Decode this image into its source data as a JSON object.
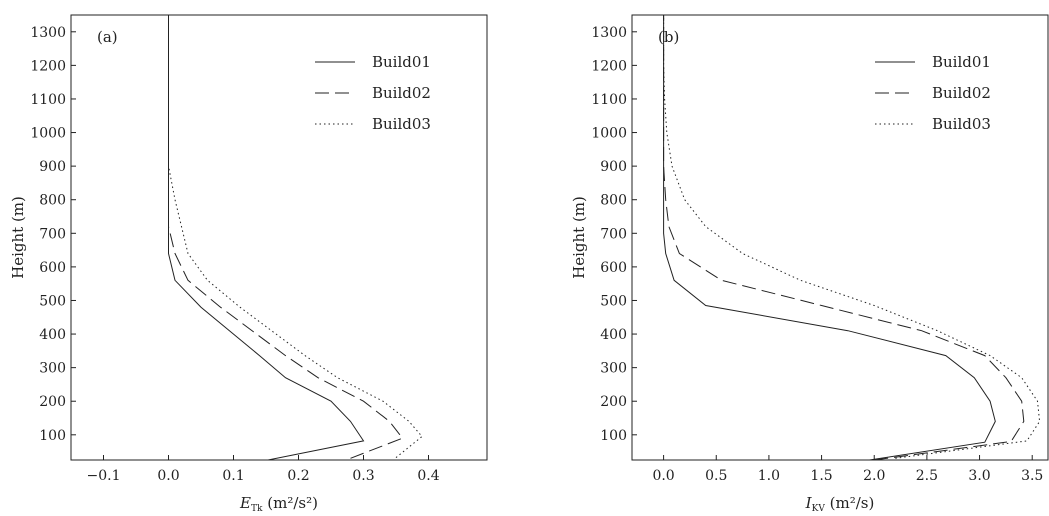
{
  "chart_data": [
    {
      "type": "line",
      "panel_label": "(a)",
      "xlabel_main": "E",
      "xlabel_sub": "Tk",
      "xlabel_unit": "(m²/s²)",
      "ylabel": "Height (m)",
      "xlim": [
        -0.15,
        0.49
      ],
      "ylim": [
        25,
        1350
      ],
      "xticks": [
        -0.1,
        0.0,
        0.1,
        0.2,
        0.3,
        0.4
      ],
      "xtick_labels": [
        "−0.1",
        "0.0",
        "0.1",
        "0.2",
        "0.3",
        "0.4"
      ],
      "yticks": [
        100,
        200,
        300,
        400,
        500,
        600,
        700,
        800,
        900,
        1000,
        1100,
        1200,
        1300
      ],
      "legend_position": "top-right",
      "series": [
        {
          "name": "Build01",
          "style": "solid",
          "points": [
            [
              0.14,
              20
            ],
            [
              0.3,
              82
            ],
            [
              0.28,
              140
            ],
            [
              0.25,
              200
            ],
            [
              0.18,
              270
            ],
            [
              0.14,
              336
            ],
            [
              0.05,
              480
            ],
            [
              0.01,
              560
            ],
            [
              0.0,
              640
            ],
            [
              0.0,
              700
            ],
            [
              0.0,
              800
            ],
            [
              0.0,
              900
            ],
            [
              0.0,
              1000
            ],
            [
              0.0,
              1100
            ],
            [
              0.0,
              1200
            ],
            [
              0.0,
              1350
            ]
          ]
        },
        {
          "name": "Build02",
          "style": "dashed",
          "points": [
            [
              0.28,
              30
            ],
            [
              0.36,
              90
            ],
            [
              0.34,
              140
            ],
            [
              0.3,
              200
            ],
            [
              0.23,
              270
            ],
            [
              0.18,
              336
            ],
            [
              0.08,
              480
            ],
            [
              0.03,
              560
            ],
            [
              0.01,
              640
            ],
            [
              0.0,
              720
            ],
            [
              0.0,
              800
            ],
            [
              0.0,
              900
            ],
            [
              0.0,
              1000
            ],
            [
              0.0,
              1100
            ],
            [
              0.0,
              1200
            ],
            [
              0.0,
              1350
            ]
          ]
        },
        {
          "name": "Build03",
          "style": "dotted",
          "points": [
            [
              0.35,
              32
            ],
            [
              0.39,
              95
            ],
            [
              0.37,
              140
            ],
            [
              0.33,
              200
            ],
            [
              0.26,
              270
            ],
            [
              0.21,
              336
            ],
            [
              0.11,
              480
            ],
            [
              0.06,
              560
            ],
            [
              0.03,
              640
            ],
            [
              0.02,
              720
            ],
            [
              0.01,
              800
            ],
            [
              0.0,
              900
            ],
            [
              0.0,
              1000
            ],
            [
              0.0,
              1100
            ],
            [
              0.0,
              1200
            ],
            [
              0.0,
              1350
            ]
          ]
        }
      ]
    },
    {
      "type": "line",
      "panel_label": "(b)",
      "xlabel_main": "I",
      "xlabel_sub": "KV",
      "xlabel_unit": "(m²/s)",
      "ylabel": "Height (m)",
      "xlim": [
        -0.3,
        3.65
      ],
      "ylim": [
        25,
        1350
      ],
      "xticks": [
        0.0,
        0.5,
        1.0,
        1.5,
        2.0,
        2.5,
        3.0,
        3.5
      ],
      "xtick_labels": [
        "0.0",
        "0.5",
        "1.0",
        "1.5",
        "2.0",
        "2.5",
        "3.0",
        "3.5"
      ],
      "yticks": [
        100,
        200,
        300,
        400,
        500,
        600,
        700,
        800,
        900,
        1000,
        1100,
        1200,
        1300
      ],
      "legend_position": "top-right",
      "series": [
        {
          "name": "Build01",
          "style": "solid",
          "points": [
            [
              1.85,
              20
            ],
            [
              3.05,
              78
            ],
            [
              3.15,
              140
            ],
            [
              3.1,
              200
            ],
            [
              2.95,
              270
            ],
            [
              2.68,
              336
            ],
            [
              1.75,
              410
            ],
            [
              0.4,
              485
            ],
            [
              0.1,
              560
            ],
            [
              0.02,
              640
            ],
            [
              0.0,
              700
            ],
            [
              0.0,
              800
            ],
            [
              0.0,
              900
            ],
            [
              0.0,
              1000
            ],
            [
              0.0,
              1100
            ],
            [
              0.0,
              1200
            ],
            [
              0.0,
              1350
            ]
          ]
        },
        {
          "name": "Build02",
          "style": "dashed",
          "points": [
            [
              2.0,
              25
            ],
            [
              3.3,
              80
            ],
            [
              3.42,
              140
            ],
            [
              3.4,
              200
            ],
            [
              3.25,
              270
            ],
            [
              3.05,
              336
            ],
            [
              2.45,
              410
            ],
            [
              1.5,
              485
            ],
            [
              0.55,
              560
            ],
            [
              0.15,
              640
            ],
            [
              0.05,
              720
            ],
            [
              0.02,
              800
            ],
            [
              0.0,
              900
            ],
            [
              0.0,
              1000
            ],
            [
              0.0,
              1100
            ],
            [
              0.0,
              1200
            ],
            [
              0.0,
              1350
            ]
          ]
        },
        {
          "name": "Build03",
          "style": "dotted",
          "points": [
            [
              2.2,
              30
            ],
            [
              3.45,
              82
            ],
            [
              3.57,
              140
            ],
            [
              3.55,
              200
            ],
            [
              3.4,
              270
            ],
            [
              3.1,
              336
            ],
            [
              2.6,
              410
            ],
            [
              2.0,
              485
            ],
            [
              1.3,
              560
            ],
            [
              0.75,
              640
            ],
            [
              0.4,
              720
            ],
            [
              0.2,
              800
            ],
            [
              0.08,
              900
            ],
            [
              0.03,
              1000
            ],
            [
              0.01,
              1100
            ],
            [
              0.0,
              1200
            ],
            [
              0.0,
              1350
            ]
          ]
        }
      ]
    }
  ]
}
